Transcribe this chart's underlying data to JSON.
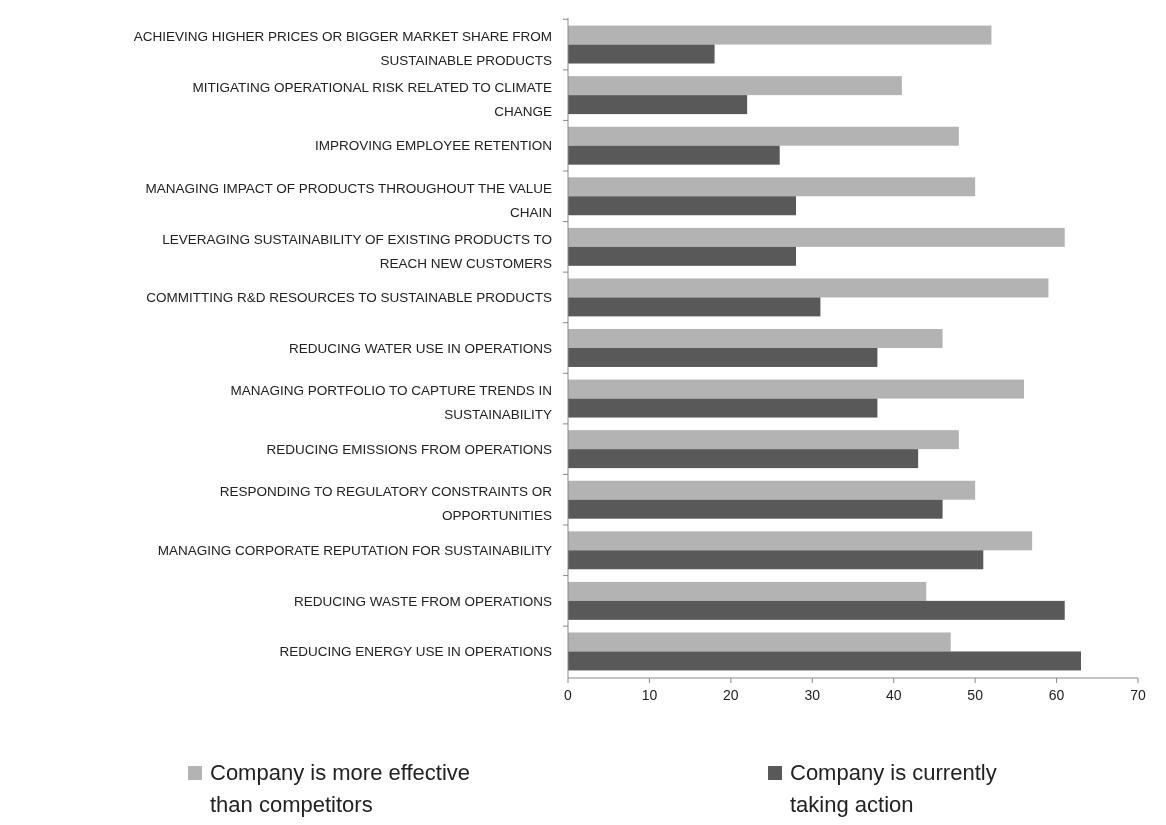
{
  "chart_data": {
    "type": "bar",
    "orientation": "horizontal",
    "categories": [
      "ACHIEVING HIGHER PRICES OR BIGGER MARKET SHARE FROM SUSTAINABLE PRODUCTS",
      "MITIGATING OPERATIONAL RISK RELATED TO CLIMATE CHANGE",
      "IMPROVING EMPLOYEE RETENTION",
      "MANAGING IMPACT OF PRODUCTS THROUGHOUT THE VALUE CHAIN",
      "LEVERAGING SUSTAINABILITY OF EXISTING PRODUCTS TO REACH NEW CUSTOMERS",
      "COMMITTING R&D RESOURCES TO SUSTAINABLE PRODUCTS",
      "REDUCING WATER USE IN OPERATIONS",
      "MANAGING PORTFOLIO TO CAPTURE TRENDS IN SUSTAINABILITY",
      "REDUCING EMISSIONS FROM OPERATIONS",
      "RESPONDING TO REGULATORY CONSTRAINTS OR OPPORTUNITIES",
      "MANAGING CORPORATE REPUTATION FOR SUSTAINABILITY",
      "REDUCING WASTE FROM OPERATIONS",
      "REDUCING ENERGY USE IN OPERATIONS"
    ],
    "series": [
      {
        "name": "Company is more effective than competitors",
        "color": "#b3b3b3",
        "values": [
          52,
          41,
          48,
          50,
          61,
          59,
          46,
          56,
          48,
          50,
          57,
          44,
          47
        ]
      },
      {
        "name": "Company is currently taking action",
        "color": "#595959",
        "values": [
          18,
          22,
          26,
          28,
          28,
          31,
          38,
          38,
          43,
          46,
          51,
          61,
          63
        ]
      }
    ],
    "xlim": [
      0,
      70
    ],
    "xticks": [
      0,
      10,
      20,
      30,
      40,
      50,
      60,
      70
    ],
    "grid": false,
    "legend": "bottom"
  }
}
